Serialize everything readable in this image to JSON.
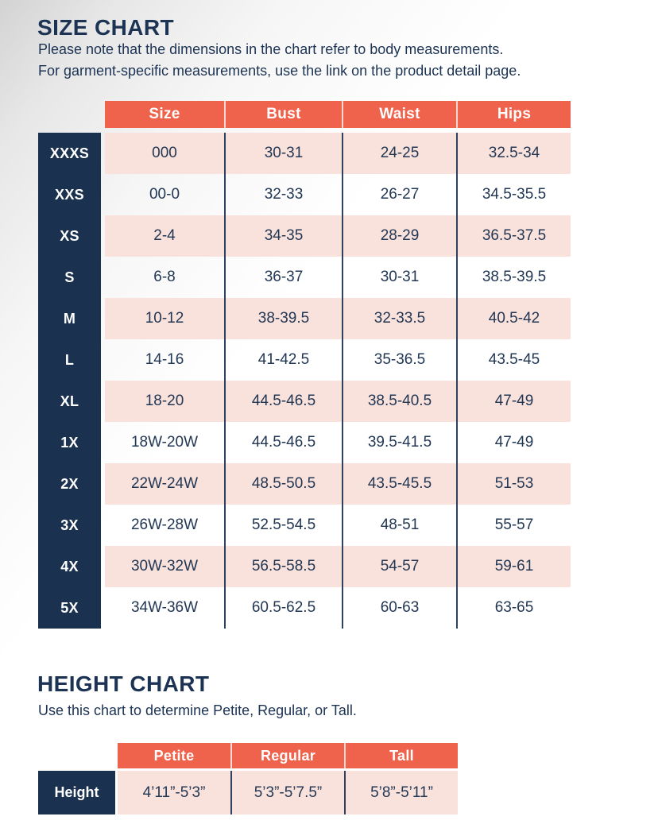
{
  "colors": {
    "header_orange": "#EF634C",
    "row_pink": "#FAE2DC",
    "label_navy": "#1B3150",
    "text_navy": "#1C3353",
    "divider_navy": "#2F4160"
  },
  "size_chart": {
    "title": "SIZE CHART",
    "subtitle_line1": "Please note that the dimensions in the chart refer to body measurements.",
    "subtitle_line2": "For garment-specific measurements, use the link on the product detail page.",
    "columns": [
      "Size",
      "Bust",
      "Waist",
      "Hips"
    ],
    "rows": [
      {
        "label": "XXXS",
        "size": "000",
        "bust": "30-31",
        "waist": "24-25",
        "hips": "32.5-34"
      },
      {
        "label": "XXS",
        "size": "00-0",
        "bust": "32-33",
        "waist": "26-27",
        "hips": "34.5-35.5"
      },
      {
        "label": "XS",
        "size": "2-4",
        "bust": "34-35",
        "waist": "28-29",
        "hips": "36.5-37.5"
      },
      {
        "label": "S",
        "size": "6-8",
        "bust": "36-37",
        "waist": "30-31",
        "hips": "38.5-39.5"
      },
      {
        "label": "M",
        "size": "10-12",
        "bust": "38-39.5",
        "waist": "32-33.5",
        "hips": "40.5-42"
      },
      {
        "label": "L",
        "size": "14-16",
        "bust": "41-42.5",
        "waist": "35-36.5",
        "hips": "43.5-45"
      },
      {
        "label": "XL",
        "size": "18-20",
        "bust": "44.5-46.5",
        "waist": "38.5-40.5",
        "hips": "47-49"
      },
      {
        "label": "1X",
        "size": "18W-20W",
        "bust": "44.5-46.5",
        "waist": "39.5-41.5",
        "hips": "47-49"
      },
      {
        "label": "2X",
        "size": "22W-24W",
        "bust": "48.5-50.5",
        "waist": "43.5-45.5",
        "hips": "51-53"
      },
      {
        "label": "3X",
        "size": "26W-28W",
        "bust": "52.5-54.5",
        "waist": "48-51",
        "hips": "55-57"
      },
      {
        "label": "4X",
        "size": "30W-32W",
        "bust": "56.5-58.5",
        "waist": "54-57",
        "hips": "59-61"
      },
      {
        "label": "5X",
        "size": "34W-36W",
        "bust": "60.5-62.5",
        "waist": "60-63",
        "hips": "63-65"
      }
    ]
  },
  "height_chart": {
    "title": "HEIGHT CHART",
    "subtitle": "Use this chart to determine Petite, Regular, or Tall.",
    "columns": [
      "Petite",
      "Regular",
      "Tall"
    ],
    "row_label": "Height",
    "values": [
      "4’11”-5’3”",
      "5’3”-5’7.5”",
      "5’8”-5’11”"
    ]
  }
}
